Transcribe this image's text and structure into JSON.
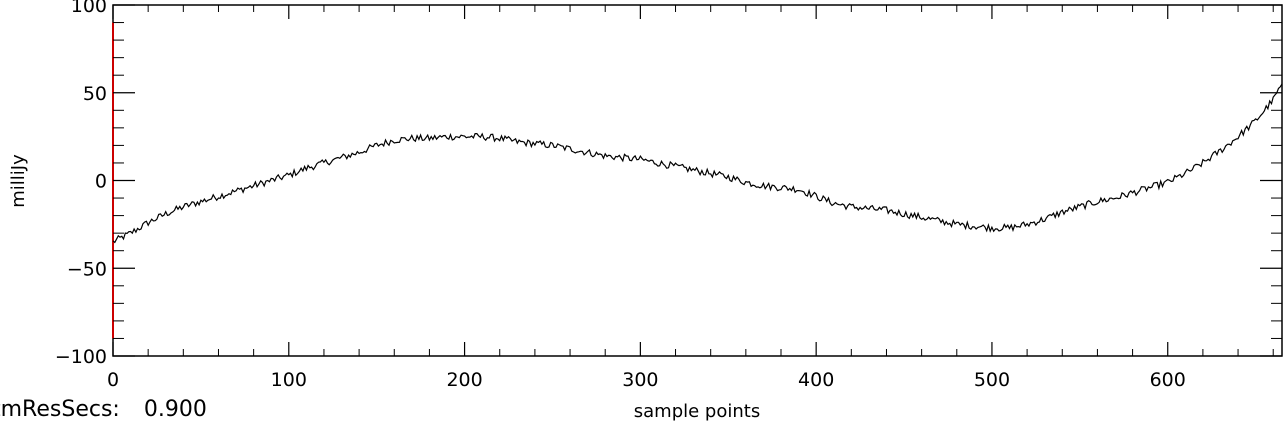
{
  "chart_data": {
    "type": "line",
    "xlabel": "sample points",
    "ylabel": "milliJy",
    "xlim": [
      0,
      665
    ],
    "ylim": [
      -100,
      100
    ],
    "x_ticks": [
      0,
      100,
      200,
      300,
      400,
      500,
      600
    ],
    "x_tick_labels": [
      "0",
      "100",
      "200",
      "300",
      "400",
      "500",
      "600"
    ],
    "y_ticks": [
      -100,
      -50,
      0,
      50,
      100
    ],
    "y_tick_labels": [
      "−100",
      "−50",
      "0",
      "50",
      "100"
    ],
    "grid": false,
    "line_color": "#000000",
    "axis_marker_color": "#cc0000",
    "series": [
      {
        "x": [
          0,
          10,
          20,
          30,
          40,
          50,
          60,
          70,
          80,
          90,
          100,
          110,
          120,
          130,
          140,
          150,
          160,
          170,
          180,
          190,
          200,
          210,
          220,
          230,
          240,
          250,
          260,
          270,
          280,
          290,
          300,
          310,
          320,
          330,
          340,
          350,
          360,
          370,
          380,
          390,
          400,
          410,
          420,
          430,
          440,
          450,
          460,
          470,
          480,
          490,
          500,
          510,
          520,
          530,
          540,
          550,
          560,
          570,
          580,
          590,
          600,
          610,
          620,
          630,
          640,
          650,
          660,
          665
        ],
        "values": [
          -35,
          -30,
          -24,
          -19,
          -15,
          -12,
          -9,
          -6,
          -3,
          0,
          3,
          7,
          10,
          13,
          16,
          20,
          23,
          24,
          24,
          25,
          25,
          25,
          24,
          22,
          21,
          20,
          18,
          16,
          14,
          13,
          12,
          10,
          8,
          6,
          4,
          2,
          -1,
          -3,
          -4,
          -5,
          -9,
          -13,
          -15,
          -16,
          -17,
          -19,
          -21,
          -23,
          -25,
          -26,
          -27,
          -27,
          -25,
          -22,
          -18,
          -15,
          -12,
          -10,
          -7,
          -4,
          -1,
          4,
          10,
          17,
          25,
          34,
          46,
          55
        ]
      }
    ]
  },
  "footer": {
    "label": "tmResSecs:",
    "value": "0.900"
  }
}
